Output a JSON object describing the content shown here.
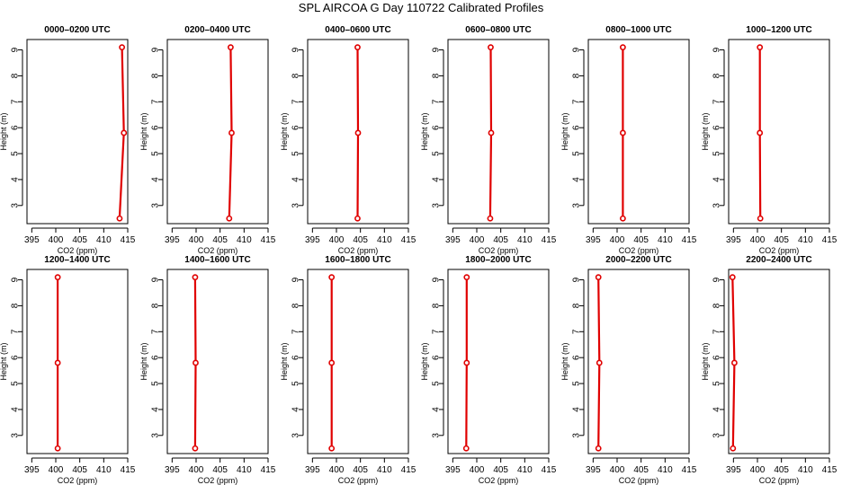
{
  "figure": {
    "title": "SPL AIRCOA G  Day 110722  Calibrated Profiles"
  },
  "style": {
    "line_color": "#e00000",
    "axis_color": "#000000"
  },
  "chart_data": [
    {
      "type": "line",
      "title": "0000–0200 UTC",
      "xlabel": "CO2 (ppm)",
      "ylabel": "Height (m)",
      "xlim": [
        394,
        415
      ],
      "ylim": [
        2.3,
        9.4
      ],
      "xticks": [
        395,
        400,
        405,
        410,
        415
      ],
      "yticks": [
        3,
        4,
        5,
        6,
        7,
        8,
        9
      ],
      "series": [
        {
          "x": [
            413.3,
            414.2,
            413.8
          ],
          "y": [
            2.5,
            5.8,
            9.1
          ]
        }
      ]
    },
    {
      "type": "line",
      "title": "0200–0400 UTC",
      "xlabel": "CO2 (ppm)",
      "ylabel": "Height (m)",
      "xlim": [
        394,
        415
      ],
      "ylim": [
        2.3,
        9.4
      ],
      "xticks": [
        395,
        400,
        405,
        410,
        415
      ],
      "yticks": [
        3,
        4,
        5,
        6,
        7,
        8,
        9
      ],
      "series": [
        {
          "x": [
            406.9,
            407.4,
            407.2
          ],
          "y": [
            2.5,
            5.8,
            9.1
          ]
        }
      ]
    },
    {
      "type": "line",
      "title": "0400–0600 UTC",
      "xlabel": "CO2 (ppm)",
      "ylabel": "Height (m)",
      "xlim": [
        394,
        415
      ],
      "ylim": [
        2.3,
        9.4
      ],
      "xticks": [
        395,
        400,
        405,
        410,
        415
      ],
      "yticks": [
        3,
        4,
        5,
        6,
        7,
        8,
        9
      ],
      "series": [
        {
          "x": [
            404.4,
            404.5,
            404.4
          ],
          "y": [
            2.5,
            5.8,
            9.1
          ]
        }
      ]
    },
    {
      "type": "line",
      "title": "0600–0800 UTC",
      "xlabel": "CO2 (ppm)",
      "ylabel": "Height (m)",
      "xlim": [
        394,
        415
      ],
      "ylim": [
        2.3,
        9.4
      ],
      "xticks": [
        395,
        400,
        405,
        410,
        415
      ],
      "yticks": [
        3,
        4,
        5,
        6,
        7,
        8,
        9
      ],
      "series": [
        {
          "x": [
            402.8,
            403.0,
            402.9
          ],
          "y": [
            2.5,
            5.8,
            9.1
          ]
        }
      ]
    },
    {
      "type": "line",
      "title": "0800–1000 UTC",
      "xlabel": "CO2 (ppm)",
      "ylabel": "Height (m)",
      "xlim": [
        394,
        415
      ],
      "ylim": [
        2.3,
        9.4
      ],
      "xticks": [
        395,
        400,
        405,
        410,
        415
      ],
      "yticks": [
        3,
        4,
        5,
        6,
        7,
        8,
        9
      ],
      "series": [
        {
          "x": [
            401.2,
            401.2,
            401.2
          ],
          "y": [
            2.5,
            5.8,
            9.1
          ]
        }
      ]
    },
    {
      "type": "line",
      "title": "1000–1200 UTC",
      "xlabel": "CO2 (ppm)",
      "ylabel": "Height (m)",
      "xlim": [
        394,
        415
      ],
      "ylim": [
        2.3,
        9.4
      ],
      "xticks": [
        395,
        400,
        405,
        410,
        415
      ],
      "yticks": [
        3,
        4,
        5,
        6,
        7,
        8,
        9
      ],
      "series": [
        {
          "x": [
            400.6,
            400.5,
            400.5
          ],
          "y": [
            2.5,
            5.8,
            9.1
          ]
        }
      ]
    },
    {
      "type": "line",
      "title": "1200–1400 UTC",
      "xlabel": "CO2 (ppm)",
      "ylabel": "Height (m)",
      "xlim": [
        394,
        415
      ],
      "ylim": [
        2.3,
        9.4
      ],
      "xticks": [
        395,
        400,
        405,
        410,
        415
      ],
      "yticks": [
        3,
        4,
        5,
        6,
        7,
        8,
        9
      ],
      "series": [
        {
          "x": [
            400.4,
            400.4,
            400.4
          ],
          "y": [
            2.5,
            5.8,
            9.1
          ]
        }
      ]
    },
    {
      "type": "line",
      "title": "1400–1600 UTC",
      "xlabel": "CO2 (ppm)",
      "ylabel": "Height (m)",
      "xlim": [
        394,
        415
      ],
      "ylim": [
        2.3,
        9.4
      ],
      "xticks": [
        395,
        400,
        405,
        410,
        415
      ],
      "yticks": [
        3,
        4,
        5,
        6,
        7,
        8,
        9
      ],
      "series": [
        {
          "x": [
            399.8,
            399.9,
            399.8
          ],
          "y": [
            2.5,
            5.8,
            9.1
          ]
        }
      ]
    },
    {
      "type": "line",
      "title": "1600–1800 UTC",
      "xlabel": "CO2 (ppm)",
      "ylabel": "Height (m)",
      "xlim": [
        394,
        415
      ],
      "ylim": [
        2.3,
        9.4
      ],
      "xticks": [
        395,
        400,
        405,
        410,
        415
      ],
      "yticks": [
        3,
        4,
        5,
        6,
        7,
        8,
        9
      ],
      "series": [
        {
          "x": [
            399.0,
            399.0,
            399.0
          ],
          "y": [
            2.5,
            5.8,
            9.1
          ]
        }
      ]
    },
    {
      "type": "line",
      "title": "1800–2000 UTC",
      "xlabel": "CO2 (ppm)",
      "ylabel": "Height (m)",
      "xlim": [
        394,
        415
      ],
      "ylim": [
        2.3,
        9.4
      ],
      "xticks": [
        395,
        400,
        405,
        410,
        415
      ],
      "yticks": [
        3,
        4,
        5,
        6,
        7,
        8,
        9
      ],
      "series": [
        {
          "x": [
            397.8,
            397.9,
            397.9
          ],
          "y": [
            2.5,
            5.8,
            9.1
          ]
        }
      ]
    },
    {
      "type": "line",
      "title": "2000–2200 UTC",
      "xlabel": "CO2 (ppm)",
      "ylabel": "Height (m)",
      "xlim": [
        394,
        415
      ],
      "ylim": [
        2.3,
        9.4
      ],
      "xticks": [
        395,
        400,
        405,
        410,
        415
      ],
      "yticks": [
        3,
        4,
        5,
        6,
        7,
        8,
        9
      ],
      "series": [
        {
          "x": [
            396.1,
            396.3,
            396.1
          ],
          "y": [
            2.5,
            5.8,
            9.1
          ]
        }
      ]
    },
    {
      "type": "line",
      "title": "2200–2400 UTC",
      "xlabel": "CO2 (ppm)",
      "ylabel": "Height (m)",
      "xlim": [
        394,
        415
      ],
      "ylim": [
        2.3,
        9.4
      ],
      "xticks": [
        395,
        400,
        405,
        410,
        415
      ],
      "yticks": [
        3,
        4,
        5,
        6,
        7,
        8,
        9
      ],
      "series": [
        {
          "x": [
            394.9,
            395.2,
            394.8
          ],
          "y": [
            2.5,
            5.8,
            9.1
          ]
        }
      ]
    }
  ]
}
